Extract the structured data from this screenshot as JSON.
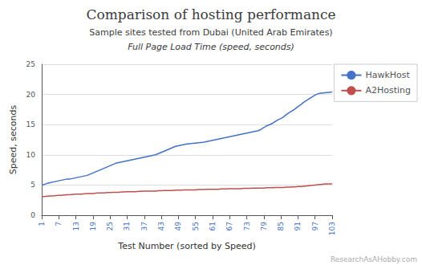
{
  "chart_data": {
    "type": "line",
    "title": "Comparison of hosting performance",
    "subtitle": [
      "Sample sites tested from Dubai (United Arab Emirates)",
      "Full Page Load Time (speed, seconds)"
    ],
    "annotations": [
      "ResearchAsAHobby.com"
    ],
    "xlabel": "Test Number (sorted by Speed)",
    "ylabel": "Speed, seconds",
    "x": [
      1,
      2,
      3,
      4,
      5,
      6,
      7,
      8,
      9,
      10,
      11,
      12,
      13,
      14,
      15,
      16,
      17,
      18,
      19,
      20,
      21,
      22,
      23,
      24,
      25,
      26,
      27,
      28,
      29,
      30,
      31,
      32,
      33,
      34,
      35,
      36,
      37,
      38,
      39,
      40,
      41,
      42,
      43,
      44,
      45,
      46,
      47,
      48,
      49,
      50,
      51,
      52,
      53,
      54,
      55,
      56,
      57,
      58,
      59,
      60,
      61,
      62,
      63,
      64,
      65,
      66,
      67,
      68,
      69,
      70,
      71,
      72,
      73,
      74,
      75,
      76,
      77,
      78,
      79,
      80,
      81,
      82,
      83,
      84,
      85,
      86,
      87,
      88,
      89,
      90,
      91,
      92,
      93,
      94,
      95,
      96,
      97,
      98,
      99,
      100,
      101,
      102,
      103
    ],
    "xlim": [
      1,
      103
    ],
    "xticks": [
      1,
      7,
      13,
      19,
      25,
      31,
      37,
      43,
      49,
      55,
      61,
      67,
      73,
      79,
      85,
      91,
      97,
      103
    ],
    "ylim": [
      0,
      25
    ],
    "yticks": [
      0,
      5,
      10,
      15,
      20,
      25
    ],
    "grid": true,
    "legend": "right",
    "series": [
      {
        "name": "HawkHost",
        "color": "#4472C4",
        "values": [
          5.0,
          5.1,
          5.3,
          5.4,
          5.5,
          5.6,
          5.7,
          5.8,
          5.9,
          6.0,
          6.0,
          6.1,
          6.2,
          6.3,
          6.4,
          6.5,
          6.6,
          6.8,
          7.0,
          7.2,
          7.4,
          7.6,
          7.8,
          8.0,
          8.2,
          8.4,
          8.6,
          8.7,
          8.8,
          8.9,
          9.0,
          9.1,
          9.2,
          9.3,
          9.4,
          9.5,
          9.6,
          9.7,
          9.8,
          9.9,
          10.0,
          10.2,
          10.4,
          10.6,
          10.8,
          11.0,
          11.2,
          11.4,
          11.5,
          11.6,
          11.7,
          11.8,
          11.85,
          11.9,
          11.95,
          12.0,
          12.05,
          12.1,
          12.2,
          12.3,
          12.4,
          12.5,
          12.6,
          12.7,
          12.8,
          12.9,
          13.0,
          13.1,
          13.2,
          13.3,
          13.4,
          13.5,
          13.6,
          13.7,
          13.8,
          13.9,
          14.0,
          14.2,
          14.5,
          14.8,
          15.0,
          15.2,
          15.5,
          15.8,
          16.0,
          16.3,
          16.7,
          17.0,
          17.3,
          17.6,
          18.0,
          18.3,
          18.7,
          19.0,
          19.3,
          19.6,
          19.9,
          20.1,
          20.2,
          20.25,
          20.3,
          20.35,
          20.4
        ]
      },
      {
        "name": "A2Hosting",
        "color": "#C0504D",
        "values": [
          3.1,
          3.1,
          3.15,
          3.2,
          3.2,
          3.25,
          3.3,
          3.3,
          3.35,
          3.4,
          3.4,
          3.45,
          3.5,
          3.5,
          3.5,
          3.55,
          3.6,
          3.6,
          3.6,
          3.65,
          3.7,
          3.7,
          3.7,
          3.75,
          3.75,
          3.8,
          3.8,
          3.8,
          3.85,
          3.85,
          3.9,
          3.9,
          3.9,
          3.9,
          3.95,
          3.95,
          4.0,
          4.0,
          4.0,
          4.0,
          4.0,
          4.05,
          4.05,
          4.1,
          4.1,
          4.1,
          4.1,
          4.15,
          4.15,
          4.15,
          4.2,
          4.2,
          4.2,
          4.2,
          4.2,
          4.25,
          4.25,
          4.25,
          4.3,
          4.3,
          4.3,
          4.3,
          4.3,
          4.35,
          4.35,
          4.35,
          4.4,
          4.4,
          4.4,
          4.4,
          4.4,
          4.45,
          4.45,
          4.45,
          4.5,
          4.5,
          4.5,
          4.5,
          4.5,
          4.55,
          4.55,
          4.55,
          4.6,
          4.6,
          4.6,
          4.6,
          4.65,
          4.65,
          4.7,
          4.7,
          4.75,
          4.75,
          4.8,
          4.85,
          4.9,
          4.95,
          5.0,
          5.05,
          5.1,
          5.15,
          5.2,
          5.2,
          5.2
        ]
      }
    ]
  }
}
